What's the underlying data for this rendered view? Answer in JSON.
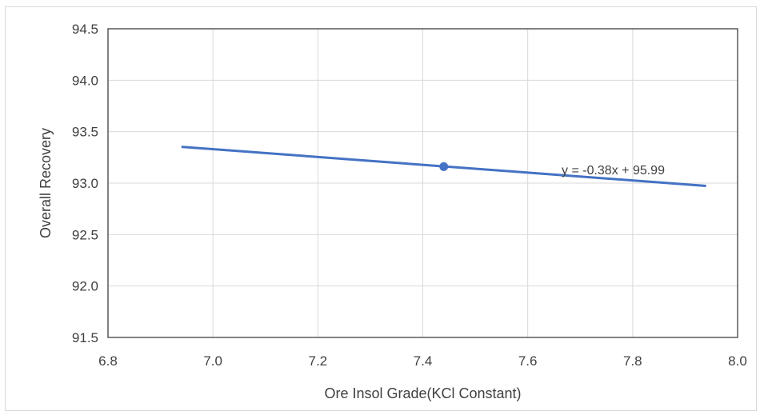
{
  "chart_data": {
    "type": "scatter",
    "title": "",
    "xlabel": "Ore Insol Grade(KCl Constant)",
    "ylabel": "Overall Recovery",
    "xlim": [
      6.8,
      8.0
    ],
    "ylim": [
      91.5,
      94.5
    ],
    "x_ticks": [
      "6.8",
      "7.0",
      "7.2",
      "7.4",
      "7.6",
      "7.8",
      "8.0"
    ],
    "y_ticks": [
      "91.5",
      "92.0",
      "92.5",
      "93.0",
      "93.5",
      "94.0",
      "94.5"
    ],
    "grid": true,
    "series": [
      {
        "points": [
          {
            "x": 7.44,
            "y": 93.16
          }
        ]
      }
    ],
    "trendline": {
      "type": "linear",
      "slope": -0.38,
      "intercept": 95.99,
      "x_range": [
        6.94,
        7.94
      ],
      "equation": "y = -0.38x + 95.99"
    },
    "colors": {
      "series": "#4472c4",
      "grid": "#d9d9d9",
      "axis": "#404040",
      "text": "#404040"
    }
  }
}
